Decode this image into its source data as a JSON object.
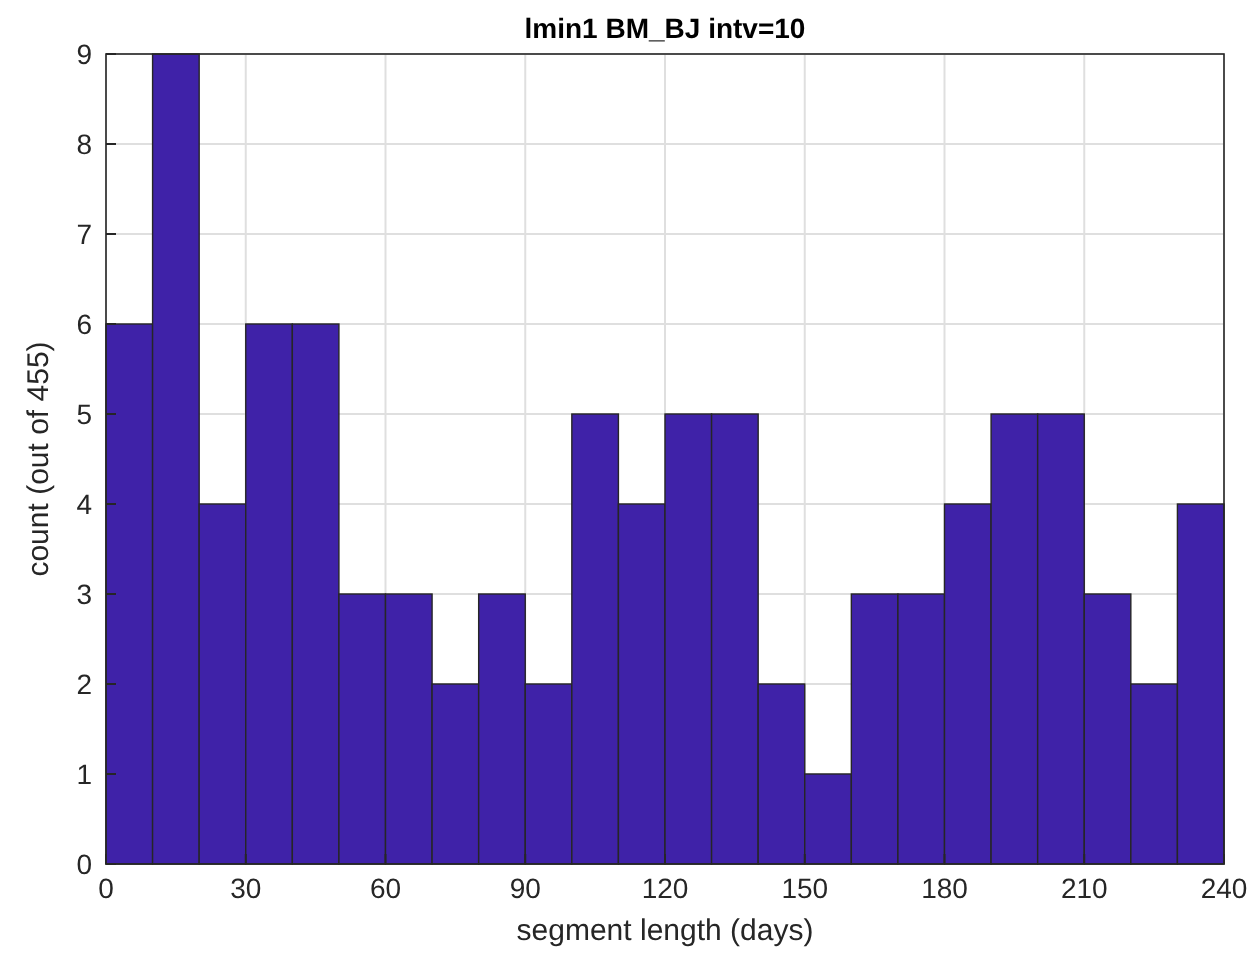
{
  "chart_data": {
    "type": "histogram",
    "title": "lmin1 BM_BJ intv=10",
    "xlabel": "segment length (days)",
    "ylabel": "count (out of 455)",
    "bins": [
      0,
      10,
      20,
      30,
      40,
      50,
      60,
      70,
      80,
      90,
      100,
      110,
      120,
      130,
      140,
      150,
      160,
      170,
      180,
      190,
      200,
      210,
      220,
      230,
      240
    ],
    "values": [
      6,
      9,
      4,
      6,
      6,
      3,
      3,
      2,
      3,
      2,
      5,
      4,
      5,
      5,
      2,
      1,
      3,
      3,
      4,
      5,
      5,
      3,
      2,
      4
    ],
    "color": "#3f22a8",
    "xlim": [
      0,
      240
    ],
    "xticks": [
      0,
      30,
      60,
      90,
      120,
      150,
      180,
      210,
      240
    ],
    "ylim": [
      0,
      9
    ],
    "yticks": [
      0,
      1,
      2,
      3,
      4,
      5,
      6,
      7,
      8,
      9
    ],
    "grid": true
  }
}
